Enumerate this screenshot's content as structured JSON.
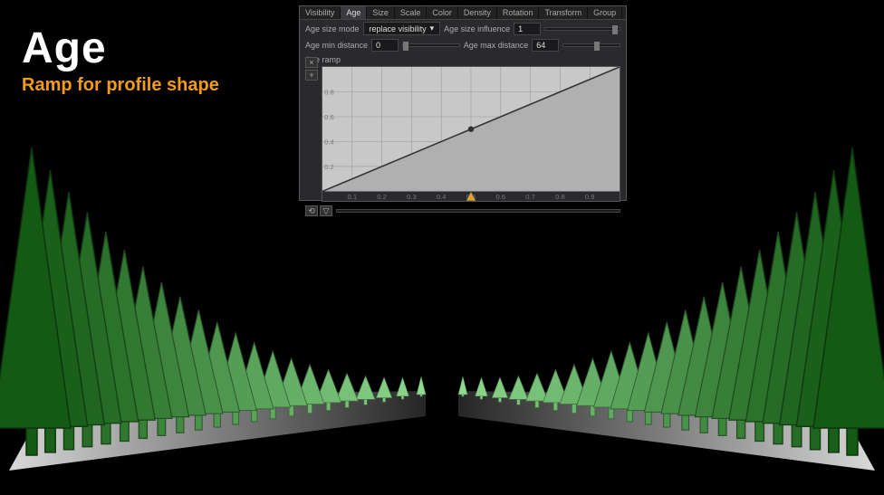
{
  "title": {
    "main": "Age",
    "sub": "Ramp for profile shape"
  },
  "panel": {
    "tabs": [
      "Visibility",
      "Age",
      "Size",
      "Scale",
      "Color",
      "Density",
      "Rotation",
      "Transform",
      "Group"
    ],
    "active_tab": 1,
    "age_size_mode_label": "Age size mode",
    "age_size_mode_value": "replace visibility",
    "age_size_influence_label": "Age size influence",
    "age_size_influence_value": "1",
    "age_min_dist_label": "Age min distance",
    "age_min_dist_value": "0",
    "age_max_dist_label": "Age max distance",
    "age_max_dist_value": "64",
    "age_ramp_label": "Age ramp",
    "ramp": {
      "type": "line",
      "bg": "#c8c8c8",
      "grid": "#999999",
      "xlim": [
        0,
        1
      ],
      "ylim": [
        0,
        1
      ],
      "xticks": [
        0.1,
        0.2,
        0.3,
        0.4,
        0.5,
        0.6,
        0.7,
        0.8,
        0.9
      ],
      "yticks": [
        0.2,
        0.4,
        0.6,
        0.8
      ],
      "points": [
        [
          0,
          0
        ],
        [
          1,
          1
        ]
      ],
      "handle_x": 0.5
    }
  },
  "scene": {
    "type": "infographic",
    "background_color": "#000000",
    "ground_front_color": "#d8d8d8",
    "ground_back_color": "#262626",
    "tree_count_per_side": 22,
    "tree_hue_front": "#8fd98f",
    "tree_hue_back": "#1f6b1f",
    "height_range": [
      18,
      300
    ]
  }
}
